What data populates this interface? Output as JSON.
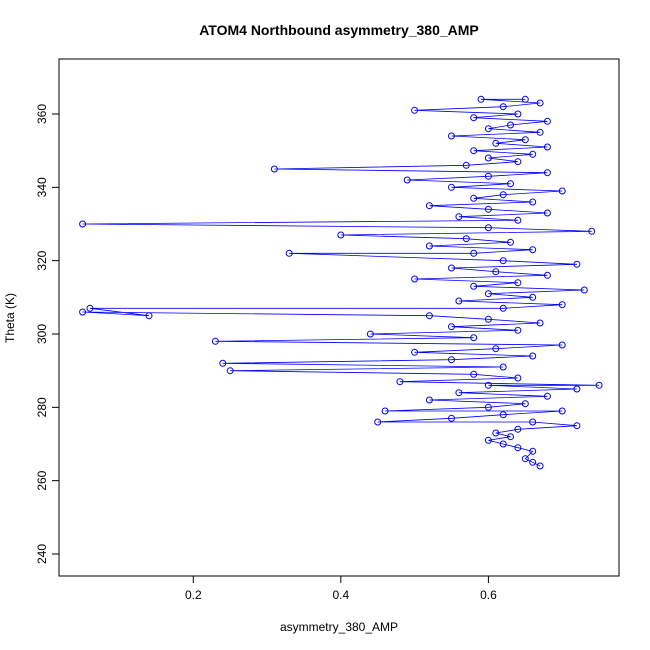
{
  "chart_data": {
    "type": "scatter",
    "title": "ATOM4 Northbound asymmetry_380_AMP",
    "xlabel": "asymmetry_380_AMP",
    "ylabel": "Theta (K)",
    "xlim": [
      0.018,
      0.777
    ],
    "ylim": [
      234,
      375
    ],
    "x_ticks": [
      0.2,
      0.4,
      0.6
    ],
    "x_tick_labels": [
      "0.2",
      "0.4",
      "0.6"
    ],
    "y_ticks": [
      240,
      260,
      280,
      300,
      320,
      340,
      360
    ],
    "y_tick_labels": [
      "240",
      "260",
      "280",
      "300",
      "320",
      "340",
      "360"
    ],
    "grid": false,
    "marker": "open-circle",
    "line": "connected",
    "color": "#0000ff",
    "series": [
      {
        "values": [
          [
            0.67,
            264
          ],
          [
            0.66,
            265
          ],
          [
            0.65,
            266
          ],
          [
            0.66,
            268
          ],
          [
            0.64,
            269
          ],
          [
            0.62,
            270
          ],
          [
            0.6,
            271
          ],
          [
            0.63,
            272
          ],
          [
            0.61,
            273
          ],
          [
            0.64,
            274
          ],
          [
            0.72,
            275
          ],
          [
            0.66,
            276
          ],
          [
            0.45,
            276
          ],
          [
            0.55,
            277
          ],
          [
            0.62,
            278
          ],
          [
            0.7,
            279
          ],
          [
            0.46,
            279
          ],
          [
            0.6,
            280
          ],
          [
            0.65,
            281
          ],
          [
            0.52,
            282
          ],
          [
            0.68,
            283
          ],
          [
            0.56,
            284
          ],
          [
            0.72,
            285
          ],
          [
            0.6,
            286
          ],
          [
            0.75,
            286
          ],
          [
            0.48,
            287
          ],
          [
            0.64,
            288
          ],
          [
            0.58,
            289
          ],
          [
            0.25,
            290
          ],
          [
            0.62,
            291
          ],
          [
            0.24,
            292
          ],
          [
            0.55,
            293
          ],
          [
            0.66,
            294
          ],
          [
            0.5,
            295
          ],
          [
            0.61,
            296
          ],
          [
            0.7,
            297
          ],
          [
            0.23,
            298
          ],
          [
            0.58,
            299
          ],
          [
            0.44,
            300
          ],
          [
            0.64,
            301
          ],
          [
            0.55,
            302
          ],
          [
            0.67,
            303
          ],
          [
            0.6,
            304
          ],
          [
            0.52,
            305
          ],
          [
            0.05,
            306
          ],
          [
            0.14,
            305
          ],
          [
            0.06,
            307
          ],
          [
            0.62,
            307
          ],
          [
            0.7,
            308
          ],
          [
            0.56,
            309
          ],
          [
            0.66,
            310
          ],
          [
            0.6,
            311
          ],
          [
            0.73,
            312
          ],
          [
            0.58,
            313
          ],
          [
            0.64,
            314
          ],
          [
            0.5,
            315
          ],
          [
            0.68,
            316
          ],
          [
            0.61,
            317
          ],
          [
            0.55,
            318
          ],
          [
            0.72,
            319
          ],
          [
            0.62,
            320
          ],
          [
            0.33,
            322
          ],
          [
            0.58,
            322
          ],
          [
            0.66,
            323
          ],
          [
            0.52,
            324
          ],
          [
            0.63,
            325
          ],
          [
            0.57,
            326
          ],
          [
            0.4,
            327
          ],
          [
            0.74,
            328
          ],
          [
            0.6,
            329
          ],
          [
            0.05,
            330
          ],
          [
            0.64,
            331
          ],
          [
            0.56,
            332
          ],
          [
            0.68,
            333
          ],
          [
            0.6,
            334
          ],
          [
            0.52,
            335
          ],
          [
            0.66,
            336
          ],
          [
            0.58,
            337
          ],
          [
            0.62,
            338
          ],
          [
            0.7,
            339
          ],
          [
            0.55,
            340
          ],
          [
            0.63,
            341
          ],
          [
            0.49,
            342
          ],
          [
            0.6,
            343
          ],
          [
            0.68,
            344
          ],
          [
            0.31,
            345
          ],
          [
            0.57,
            346
          ],
          [
            0.64,
            347
          ],
          [
            0.6,
            348
          ],
          [
            0.66,
            349
          ],
          [
            0.58,
            350
          ],
          [
            0.68,
            351
          ],
          [
            0.61,
            352
          ],
          [
            0.65,
            353
          ],
          [
            0.55,
            354
          ],
          [
            0.67,
            355
          ],
          [
            0.6,
            356
          ],
          [
            0.63,
            357
          ],
          [
            0.68,
            358
          ],
          [
            0.58,
            359
          ],
          [
            0.64,
            360
          ],
          [
            0.5,
            361
          ],
          [
            0.62,
            362
          ],
          [
            0.67,
            363
          ],
          [
            0.59,
            364
          ],
          [
            0.65,
            364
          ]
        ]
      }
    ]
  }
}
